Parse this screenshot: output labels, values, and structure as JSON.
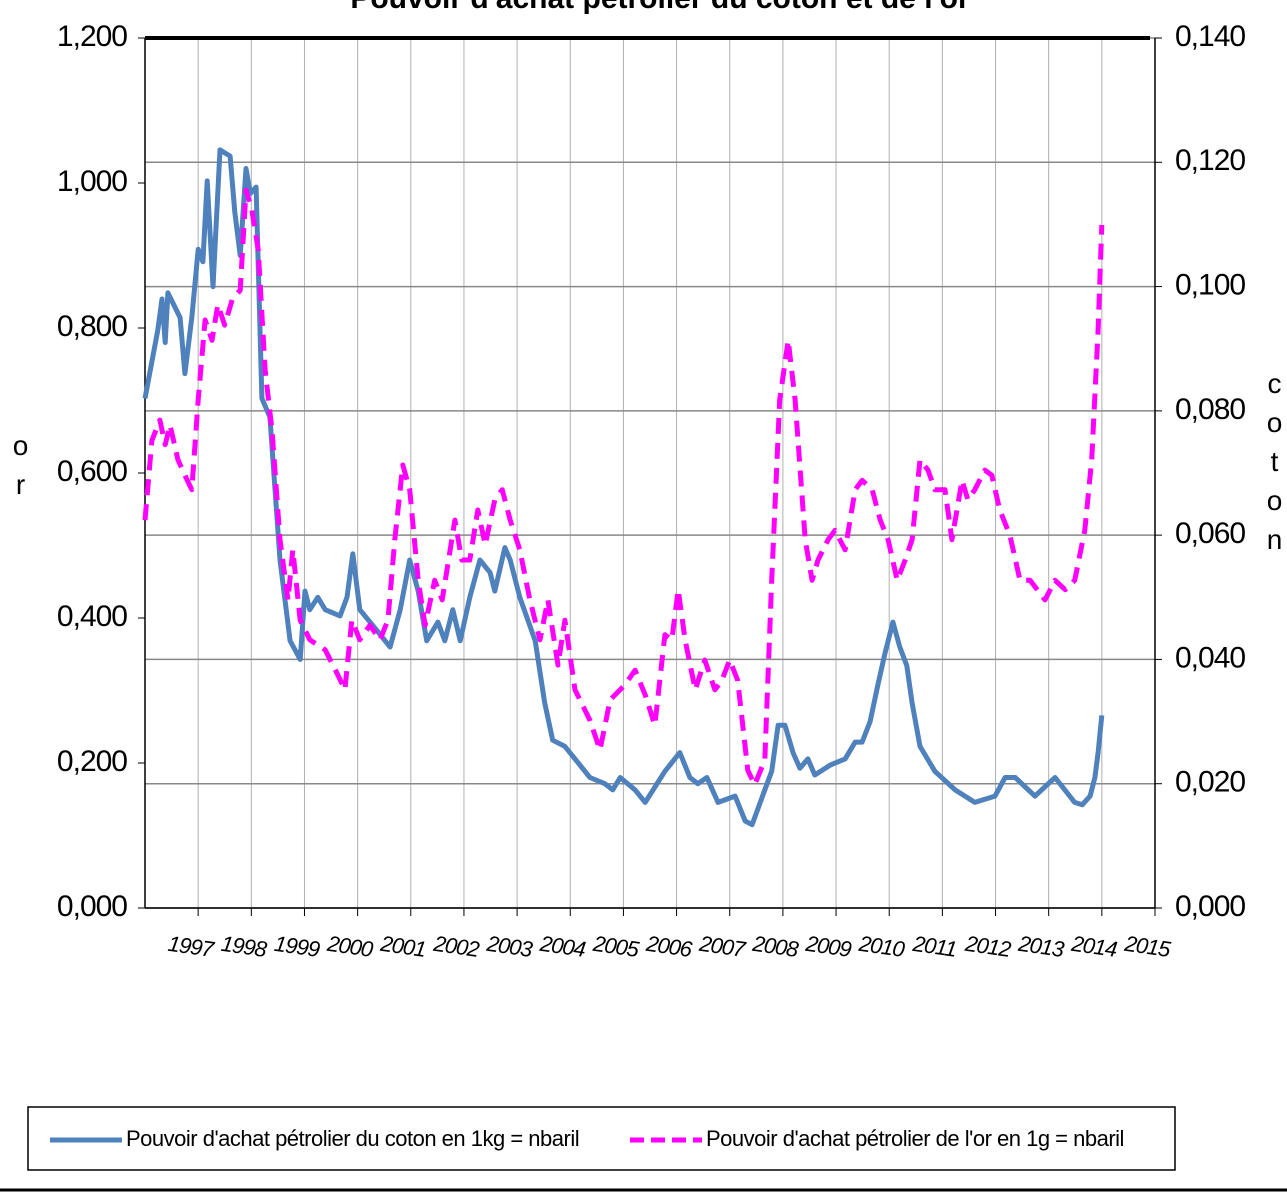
{
  "chart_data": {
    "type": "line",
    "title": "Pouvoir d'achat pétrolier du coton et de l'or",
    "y_label": "or",
    "y2_label": "coton",
    "xlim": [
      1996,
      2015
    ],
    "xticks": [
      1997,
      1998,
      1999,
      2000,
      2001,
      2002,
      2003,
      2004,
      2005,
      2006,
      2007,
      2008,
      2009,
      2010,
      2011,
      2012,
      2013,
      2014,
      2015
    ],
    "ylim": [
      0,
      1.2
    ],
    "yticks": [
      {
        "value": 0,
        "label": "0,000"
      },
      {
        "value": 0.2,
        "label": "0,200"
      },
      {
        "value": 0.4,
        "label": "0,400"
      },
      {
        "value": 0.6,
        "label": "0,600"
      },
      {
        "value": 0.8,
        "label": "0,800"
      },
      {
        "value": 1.0,
        "label": "1,000"
      },
      {
        "value": 1.2,
        "label": "1,200"
      }
    ],
    "y2lim": [
      0,
      0.14
    ],
    "y2ticks": [
      {
        "value": 0,
        "label": "0,000"
      },
      {
        "value": 0.02,
        "label": "0,020"
      },
      {
        "value": 0.04,
        "label": "0,040"
      },
      {
        "value": 0.06,
        "label": "0,060"
      },
      {
        "value": 0.08,
        "label": "0,080"
      },
      {
        "value": 0.1,
        "label": "0,100"
      },
      {
        "value": 0.12,
        "label": "0,120"
      },
      {
        "value": 0.14,
        "label": "0,140"
      }
    ],
    "grid": "y2",
    "legend": "bottom",
    "series": [
      {
        "name": "Pouvoir d'achat pétrolier du coton en 1kg = nbaril",
        "color": "#4f81bd",
        "line_style": "solid",
        "axis": "y2",
        "x": [
          1996.0,
          1996.24,
          1996.32,
          1996.38,
          1996.43,
          1996.66,
          1996.75,
          1996.88,
          1997.0,
          1997.09,
          1997.17,
          1997.28,
          1997.41,
          1997.6,
          1997.69,
          1997.79,
          1997.9,
          1997.98,
          1998.09,
          1998.2,
          1998.35,
          1998.54,
          1998.73,
          1998.92,
          1999.01,
          1999.1,
          1999.25,
          1999.39,
          1999.67,
          1999.8,
          1999.91,
          2000.04,
          2000.33,
          2000.61,
          2000.8,
          2000.98,
          2001.14,
          2001.3,
          2001.51,
          2001.64,
          2001.79,
          2001.93,
          2002.11,
          2002.3,
          2002.49,
          2002.58,
          2002.77,
          2002.87,
          2003.05,
          2003.34,
          2003.52,
          2003.67,
          2003.9,
          2004.09,
          2004.37,
          2004.65,
          2004.8,
          2004.94,
          2005.22,
          2005.41,
          2005.78,
          2006.06,
          2006.25,
          2006.4,
          2006.57,
          2006.78,
          2007.1,
          2007.29,
          2007.42,
          2007.66,
          2007.79,
          2007.91,
          2008.04,
          2008.19,
          2008.32,
          2008.47,
          2008.6,
          2008.89,
          2009.17,
          2009.36,
          2009.49,
          2009.64,
          2009.79,
          2009.92,
          2010.07,
          2010.2,
          2010.33,
          2010.43,
          2010.58,
          2010.86,
          2011.24,
          2011.61,
          2011.99,
          2012.18,
          2012.37,
          2012.74,
          2013.12,
          2013.49,
          2013.63,
          2013.78,
          2013.87,
          2013.93,
          2014.0
        ],
        "values": [
          0.082,
          0.093,
          0.098,
          0.091,
          0.099,
          0.095,
          0.086,
          0.095,
          0.106,
          0.104,
          0.117,
          0.1,
          0.122,
          0.121,
          0.112,
          0.105,
          0.119,
          0.115,
          0.116,
          0.082,
          0.079,
          0.056,
          0.043,
          0.04,
          0.051,
          0.048,
          0.05,
          0.048,
          0.047,
          0.05,
          0.057,
          0.048,
          0.045,
          0.042,
          0.048,
          0.056,
          0.051,
          0.043,
          0.046,
          0.043,
          0.048,
          0.043,
          0.05,
          0.056,
          0.054,
          0.051,
          0.058,
          0.056,
          0.05,
          0.043,
          0.033,
          0.027,
          0.026,
          0.024,
          0.021,
          0.02,
          0.019,
          0.021,
          0.019,
          0.017,
          0.022,
          0.025,
          0.021,
          0.02,
          0.021,
          0.017,
          0.018,
          0.014,
          0.0134,
          0.019,
          0.022,
          0.0294,
          0.0294,
          0.025,
          0.0225,
          0.024,
          0.0214,
          0.023,
          0.024,
          0.0267,
          0.0267,
          0.03,
          0.036,
          0.041,
          0.046,
          0.042,
          0.039,
          0.033,
          0.026,
          0.022,
          0.019,
          0.017,
          0.018,
          0.021,
          0.021,
          0.018,
          0.021,
          0.017,
          0.0166,
          0.018,
          0.021,
          0.025,
          0.031
        ]
      },
      {
        "name": "Pouvoir d'achat pétrolier de l'or en 1g = nbaril",
        "color": "#ff00ff",
        "line_style": "dashed",
        "axis": "y",
        "x": [
          1996.0,
          1996.13,
          1996.28,
          1996.38,
          1996.47,
          1996.62,
          1996.75,
          1996.88,
          1997.0,
          1997.13,
          1997.26,
          1997.37,
          1997.5,
          1997.64,
          1997.79,
          1997.9,
          1998.01,
          1998.13,
          1998.26,
          1998.39,
          1998.54,
          1998.69,
          1998.78,
          1998.92,
          1999.1,
          1999.39,
          1999.63,
          1999.76,
          1999.89,
          2000.04,
          2000.23,
          2000.42,
          2000.57,
          2000.7,
          2000.85,
          2000.98,
          2001.14,
          2001.27,
          2001.45,
          2001.59,
          2001.83,
          2001.96,
          2002.11,
          2002.26,
          2002.4,
          2002.58,
          2002.72,
          2002.87,
          2003.05,
          2003.24,
          2003.43,
          2003.58,
          2003.77,
          2003.9,
          2004.09,
          2004.37,
          2004.56,
          2004.75,
          2005.03,
          2005.22,
          2005.41,
          2005.59,
          2005.78,
          2005.91,
          2006.03,
          2006.16,
          2006.35,
          2006.53,
          2006.72,
          2006.85,
          2007.0,
          2007.15,
          2007.34,
          2007.47,
          2007.66,
          2007.79,
          2007.94,
          2008.1,
          2008.23,
          2008.42,
          2008.55,
          2008.66,
          2008.85,
          2008.98,
          2009.17,
          2009.36,
          2009.49,
          2009.68,
          2009.83,
          2009.98,
          2010.15,
          2010.3,
          2010.43,
          2010.58,
          2010.73,
          2010.86,
          2011.05,
          2011.18,
          2011.37,
          2011.48,
          2011.61,
          2011.8,
          2011.93,
          2012.08,
          2012.27,
          2012.46,
          2012.65,
          2012.93,
          2013.12,
          2013.31,
          2013.49,
          2013.68,
          2013.81,
          2013.93,
          2014.0
        ],
        "values": [
          0.535,
          0.645,
          0.673,
          0.639,
          0.666,
          0.618,
          0.597,
          0.577,
          0.701,
          0.811,
          0.783,
          0.832,
          0.804,
          0.839,
          0.852,
          0.99,
          0.963,
          0.908,
          0.742,
          0.659,
          0.508,
          0.425,
          0.494,
          0.397,
          0.37,
          0.356,
          0.321,
          0.301,
          0.397,
          0.37,
          0.39,
          0.37,
          0.397,
          0.508,
          0.611,
          0.577,
          0.452,
          0.39,
          0.452,
          0.425,
          0.535,
          0.48,
          0.48,
          0.549,
          0.501,
          0.563,
          0.577,
          0.535,
          0.494,
          0.425,
          0.37,
          0.425,
          0.335,
          0.397,
          0.301,
          0.259,
          0.218,
          0.287,
          0.308,
          0.328,
          0.294,
          0.252,
          0.377,
          0.37,
          0.439,
          0.37,
          0.301,
          0.342,
          0.301,
          0.314,
          0.342,
          0.314,
          0.19,
          0.17,
          0.204,
          0.452,
          0.701,
          0.783,
          0.701,
          0.508,
          0.452,
          0.48,
          0.508,
          0.521,
          0.494,
          0.577,
          0.59,
          0.577,
          0.535,
          0.508,
          0.452,
          0.48,
          0.508,
          0.618,
          0.604,
          0.577,
          0.577,
          0.508,
          0.59,
          0.563,
          0.577,
          0.604,
          0.597,
          0.549,
          0.514,
          0.452,
          0.452,
          0.425,
          0.452,
          0.439,
          0.452,
          0.521,
          0.618,
          0.797,
          0.942
        ]
      }
    ]
  }
}
